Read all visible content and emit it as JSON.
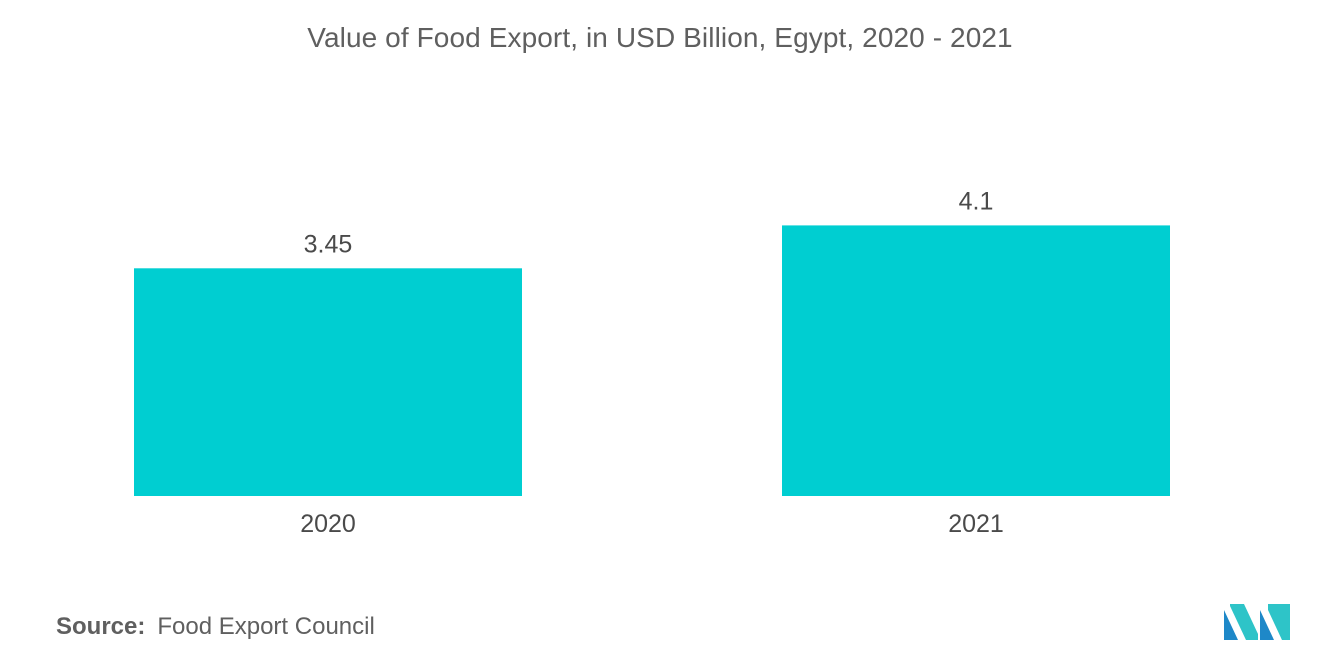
{
  "chart_data": {
    "type": "bar",
    "title": "Value of Food Export, in USD Billion, Egypt, 2020 - 2021",
    "categories": [
      "2020",
      "2021"
    ],
    "values": [
      3.45,
      4.1
    ],
    "value_labels": [
      "3.45",
      "4.1"
    ],
    "xlabel": "",
    "ylabel": "",
    "ylim": [
      0,
      4.5
    ],
    "grid": false,
    "legend": "none",
    "bar_color": "#00ced1"
  },
  "source": {
    "label": "Source:",
    "text": "Food Export Council"
  },
  "logo": {
    "icon": "mordor-intelligence-logo",
    "colors": [
      "#1e88c8",
      "#2ec4c8"
    ]
  }
}
